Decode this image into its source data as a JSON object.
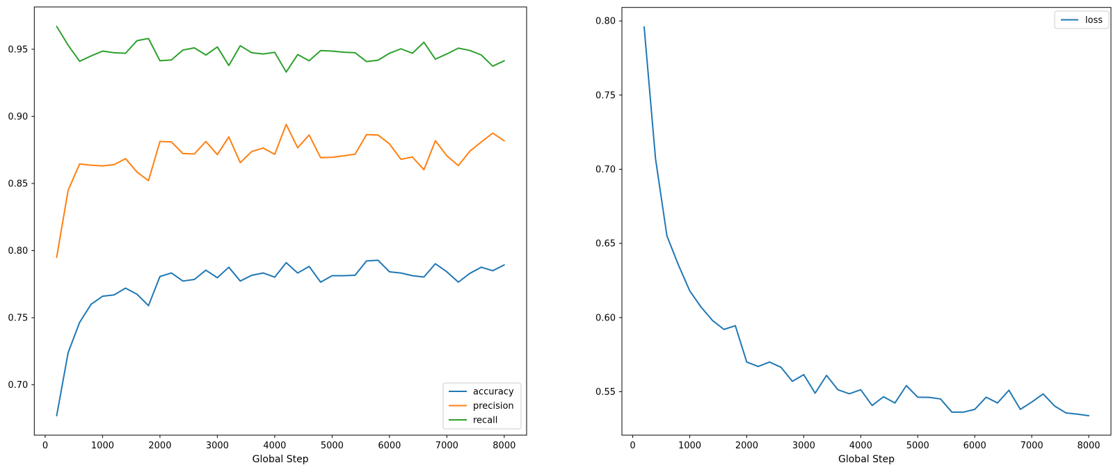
{
  "figure": {
    "background": "#ffffff",
    "axis_color": "#000000",
    "legend_border_color": "#cccccc",
    "legend_bg_color": "rgba(255,255,255,0.8)"
  },
  "chart_data": [
    {
      "type": "line",
      "title": "",
      "xlabel": "Global Step",
      "ylabel": "",
      "grid": false,
      "legend_position": "lower right",
      "xlim": [
        -190,
        8390
      ],
      "ylim": [
        0.6625,
        0.9815
      ],
      "xticks": [
        0,
        1000,
        2000,
        3000,
        4000,
        5000,
        6000,
        7000,
        8000
      ],
      "xtick_labels": [
        "0",
        "1000",
        "2000",
        "3000",
        "4000",
        "5000",
        "6000",
        "7000",
        "8000"
      ],
      "yticks": [
        0.7,
        0.75,
        0.8,
        0.85,
        0.9,
        0.95
      ],
      "ytick_labels": [
        "0.70",
        "0.75",
        "0.80",
        "0.85",
        "0.90",
        "0.95"
      ],
      "x": [
        200,
        400,
        600,
        800,
        1000,
        1200,
        1400,
        1600,
        1800,
        2000,
        2200,
        2400,
        2600,
        2800,
        3000,
        3200,
        3400,
        3600,
        3800,
        4000,
        4200,
        4400,
        4600,
        4800,
        5000,
        5200,
        5400,
        5600,
        5800,
        6000,
        6200,
        6400,
        6600,
        6800,
        7000,
        7200,
        7400,
        7600,
        7800,
        8000
      ],
      "series": [
        {
          "name": "accuracy",
          "color": "#1f77b4",
          "values": [
            0.677,
            0.724,
            0.7465,
            0.76,
            0.766,
            0.767,
            0.772,
            0.7675,
            0.759,
            0.7807,
            0.7833,
            0.7773,
            0.7785,
            0.7854,
            0.7798,
            0.7876,
            0.7773,
            0.7816,
            0.7833,
            0.7802,
            0.791,
            0.7833,
            0.7882,
            0.7765,
            0.7813,
            0.7813,
            0.7816,
            0.7923,
            0.7928,
            0.7842,
            0.7833,
            0.7813,
            0.7803,
            0.7902,
            0.7842,
            0.7765,
            0.783,
            0.7876,
            0.785,
            0.7893
          ]
        },
        {
          "name": "precision",
          "color": "#ff7f0e",
          "values": [
            0.795,
            0.845,
            0.8645,
            0.8636,
            0.8631,
            0.864,
            0.8685,
            0.8585,
            0.8521,
            0.8813,
            0.881,
            0.8723,
            0.872,
            0.8813,
            0.8715,
            0.8847,
            0.8655,
            0.8738,
            0.8764,
            0.8717,
            0.894,
            0.8766,
            0.8861,
            0.8692,
            0.8695,
            0.8706,
            0.8718,
            0.8864,
            0.8861,
            0.8795,
            0.868,
            0.8697,
            0.8602,
            0.8818,
            0.8706,
            0.8633,
            0.874,
            0.8809,
            0.8875,
            0.8818
          ]
        },
        {
          "name": "recall",
          "color": "#2ca02c",
          "values": [
            0.967,
            0.953,
            0.941,
            0.945,
            0.9486,
            0.9474,
            0.947,
            0.9564,
            0.958,
            0.9414,
            0.942,
            0.9494,
            0.951,
            0.9457,
            0.9517,
            0.9379,
            0.9526,
            0.9474,
            0.9465,
            0.9477,
            0.933,
            0.946,
            0.9414,
            0.949,
            0.9486,
            0.9478,
            0.9474,
            0.9408,
            0.9418,
            0.947,
            0.9503,
            0.947,
            0.9552,
            0.9426,
            0.9465,
            0.9508,
            0.9491,
            0.9457,
            0.9374,
            0.9414
          ]
        }
      ]
    },
    {
      "type": "line",
      "title": "",
      "xlabel": "Global Step",
      "ylabel": "",
      "grid": false,
      "legend_position": "upper right",
      "xlim": [
        -190,
        8390
      ],
      "ylim": [
        0.5207,
        0.8091
      ],
      "xticks": [
        0,
        1000,
        2000,
        3000,
        4000,
        5000,
        6000,
        7000,
        8000
      ],
      "xtick_labels": [
        "0",
        "1000",
        "2000",
        "3000",
        "4000",
        "5000",
        "6000",
        "7000",
        "8000"
      ],
      "yticks": [
        0.55,
        0.6,
        0.65,
        0.7,
        0.75,
        0.8
      ],
      "ytick_labels": [
        "0.55",
        "0.60",
        "0.65",
        "0.70",
        "0.75",
        "0.80"
      ],
      "x": [
        200,
        400,
        600,
        800,
        1000,
        1200,
        1400,
        1600,
        1800,
        2000,
        2200,
        2400,
        2600,
        2800,
        3000,
        3200,
        3400,
        3600,
        3800,
        4000,
        4200,
        4400,
        4600,
        4800,
        5000,
        5200,
        5400,
        5600,
        5800,
        6000,
        6200,
        6400,
        6600,
        6800,
        7000,
        7200,
        7400,
        7600,
        7800,
        8000
      ],
      "series": [
        {
          "name": "loss",
          "color": "#1f77b4",
          "values": [
            0.796,
            0.707,
            0.655,
            0.6356,
            0.618,
            0.607,
            0.598,
            0.592,
            0.5945,
            0.57,
            0.567,
            0.57,
            0.5665,
            0.557,
            0.5615,
            0.549,
            0.561,
            0.5513,
            0.5486,
            0.5513,
            0.5407,
            0.5466,
            0.5424,
            0.5541,
            0.5463,
            0.5462,
            0.5451,
            0.5362,
            0.5362,
            0.5381,
            0.5463,
            0.5424,
            0.551,
            0.5381,
            0.543,
            0.5485,
            0.5404,
            0.5357,
            0.5349,
            0.5338
          ]
        }
      ]
    }
  ]
}
